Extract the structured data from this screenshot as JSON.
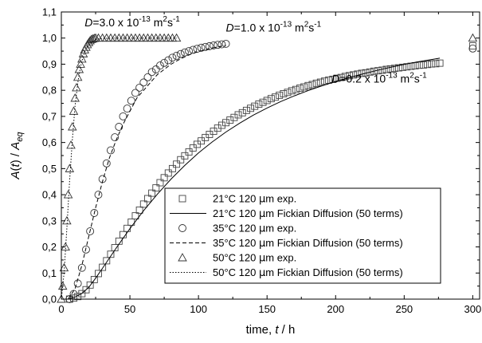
{
  "chart_data": {
    "type": "scatter",
    "title": "",
    "xlabel": {
      "prefix": "time, ",
      "var": "t",
      "suffix": " / h"
    },
    "ylabel": {
      "A": "A",
      "t": "t",
      "eq": "eq"
    },
    "xlim": [
      0,
      305
    ],
    "ylim": [
      0,
      1.1
    ],
    "x_ticks": [
      0,
      50,
      100,
      150,
      200,
      250,
      300
    ],
    "x_tick_labels": [
      "0",
      "50",
      "100",
      "150",
      "200",
      "250",
      "300"
    ],
    "y_ticks": [
      0,
      0.1,
      0.2,
      0.3,
      0.4,
      0.5,
      0.6,
      0.7,
      0.8,
      0.9,
      1.0,
      1.1
    ],
    "y_tick_labels": [
      "0,0",
      "0,1",
      "0,2",
      "0,3",
      "0,4",
      "0,5",
      "0,6",
      "0,7",
      "0,8",
      "0,9",
      "1,0",
      "1,1"
    ],
    "grid": false,
    "legend_position": "bottom-right",
    "annotations": [
      {
        "var": "D",
        "text": "=3.0 x 10",
        "exp": "-13",
        "unit": " m",
        "unit_exp": "2",
        "unit2": "s",
        "unit2_exp": "-1",
        "at_x": 17,
        "at_y": 1.045
      },
      {
        "var": "D",
        "text": "=1.0 x 10",
        "exp": "-13",
        "unit": " m",
        "unit_exp": "2",
        "unit2": "s",
        "unit2_exp": "-1",
        "at_x": 120,
        "at_y": 1.025
      },
      {
        "var": "D",
        "text": "=0.2 x 10",
        "exp": "-13",
        "unit": " m",
        "unit_exp": "2",
        "unit2": "s",
        "unit2_exp": "-1",
        "at_x": 197,
        "at_y": 0.83
      }
    ],
    "series": [
      {
        "name": "21°C 120 μm exp.",
        "label_parts": [
          "21°C 120 ",
          "μ",
          "m exp."
        ],
        "kind": "points",
        "marker": "square",
        "x": [
          6,
          9,
          12,
          15,
          18,
          21,
          24,
          27,
          30,
          33,
          36,
          39,
          42,
          45,
          48,
          51,
          54,
          57,
          60,
          63,
          66,
          69,
          72,
          75,
          78,
          81,
          84,
          87,
          90,
          93,
          96,
          99,
          102,
          105,
          108,
          111,
          114,
          117,
          120,
          123,
          126,
          129,
          132,
          135,
          138,
          141,
          144,
          147,
          150,
          153,
          156,
          159,
          162,
          165,
          168,
          171,
          174,
          177,
          180,
          183,
          186,
          189,
          192,
          195,
          198,
          201,
          204,
          207,
          210,
          213,
          216,
          219,
          222,
          225,
          228,
          231,
          234,
          237,
          240,
          243,
          246,
          249,
          252,
          255,
          258,
          261,
          264,
          267,
          270,
          273,
          276,
          300
        ],
        "y": [
          0.0,
          0.004,
          0.01,
          0.021,
          0.036,
          0.054,
          0.075,
          0.098,
          0.122,
          0.147,
          0.172,
          0.197,
          0.222,
          0.247,
          0.271,
          0.295,
          0.319,
          0.341,
          0.364,
          0.385,
          0.406,
          0.426,
          0.446,
          0.465,
          0.483,
          0.5,
          0.517,
          0.534,
          0.549,
          0.564,
          0.579,
          0.593,
          0.606,
          0.619,
          0.631,
          0.643,
          0.655,
          0.666,
          0.676,
          0.686,
          0.696,
          0.706,
          0.714,
          0.723,
          0.731,
          0.739,
          0.747,
          0.754,
          0.761,
          0.768,
          0.774,
          0.781,
          0.787,
          0.792,
          0.798,
          0.803,
          0.808,
          0.813,
          0.818,
          0.822,
          0.827,
          0.831,
          0.835,
          0.839,
          0.842,
          0.846,
          0.849,
          0.853,
          0.856,
          0.859,
          0.862,
          0.865,
          0.867,
          0.87,
          0.873,
          0.875,
          0.877,
          0.88,
          0.882,
          0.884,
          0.886,
          0.888,
          0.89,
          0.892,
          0.894,
          0.896,
          0.897,
          0.899,
          0.901,
          0.902,
          0.904,
          0.97
        ]
      },
      {
        "name": "21°C 120 μm Fickian Diffusion (50 terms)",
        "label_parts": [
          "21°C 120 ",
          "μ",
          "m Fickian Diffusion (50 terms)"
        ],
        "kind": "line",
        "dash": "",
        "x": [
          5,
          10,
          15,
          20,
          25,
          30,
          40,
          50,
          60,
          70,
          80,
          90,
          100,
          110,
          120,
          130,
          140,
          150,
          160,
          170,
          180,
          190,
          200,
          210,
          220,
          230,
          240,
          250,
          260,
          270,
          276
        ],
        "y": [
          0.0,
          0.008,
          0.022,
          0.045,
          0.08,
          0.118,
          0.196,
          0.27,
          0.339,
          0.402,
          0.46,
          0.512,
          0.56,
          0.602,
          0.64,
          0.674,
          0.705,
          0.732,
          0.757,
          0.779,
          0.799,
          0.817,
          0.834,
          0.849,
          0.863,
          0.876,
          0.888,
          0.899,
          0.909,
          0.918,
          0.923
        ]
      },
      {
        "name": "35°C 120 μm exp.",
        "label_parts": [
          "35°C 120 ",
          "μ",
          "m exp."
        ],
        "kind": "points",
        "marker": "circle",
        "x": [
          6,
          9,
          12,
          15,
          18,
          21,
          24,
          27,
          30,
          33,
          36,
          39,
          42,
          45,
          48,
          51,
          54,
          57,
          60,
          63,
          66,
          69,
          72,
          75,
          78,
          81,
          84,
          87,
          90,
          93,
          96,
          99,
          102,
          105,
          108,
          111,
          114,
          117,
          120,
          300
        ],
        "y": [
          0.0,
          0.02,
          0.06,
          0.12,
          0.19,
          0.26,
          0.33,
          0.4,
          0.46,
          0.52,
          0.57,
          0.62,
          0.66,
          0.7,
          0.73,
          0.76,
          0.79,
          0.81,
          0.83,
          0.85,
          0.87,
          0.88,
          0.895,
          0.905,
          0.915,
          0.925,
          0.932,
          0.939,
          0.945,
          0.95,
          0.955,
          0.959,
          0.963,
          0.966,
          0.969,
          0.972,
          0.974,
          0.976,
          0.978,
          0.96
        ]
      },
      {
        "name": "35°C 120 μm Fickian Diffusion (50 terms)",
        "label_parts": [
          "35°C 120 ",
          "μ",
          "m Fickian Diffusion (50 terms)"
        ],
        "kind": "line",
        "dash": "5,3",
        "x": [
          5,
          10,
          15,
          20,
          25,
          30,
          35,
          40,
          45,
          50,
          55,
          60,
          65,
          70,
          75,
          80,
          85,
          90,
          95,
          100,
          110,
          120
        ],
        "y": [
          0.0,
          0.04,
          0.13,
          0.24,
          0.35,
          0.45,
          0.54,
          0.61,
          0.67,
          0.72,
          0.77,
          0.8,
          0.83,
          0.86,
          0.88,
          0.9,
          0.915,
          0.928,
          0.94,
          0.948,
          0.962,
          0.972
        ]
      },
      {
        "name": "50°C 120 μm exp.",
        "label_parts": [
          "50°C 120 ",
          "μ",
          "m exp."
        ],
        "kind": "points",
        "marker": "triangle",
        "x": [
          0,
          1,
          2,
          3,
          4,
          5,
          6,
          7,
          8,
          9,
          10,
          11,
          12,
          13,
          14,
          15,
          16,
          17,
          18,
          19,
          20,
          21,
          22,
          23,
          24,
          25,
          27,
          30,
          33,
          36,
          39,
          42,
          45,
          48,
          51,
          54,
          57,
          60,
          63,
          66,
          69,
          72,
          75,
          78,
          81,
          84,
          300
        ],
        "y": [
          0.0,
          0.05,
          0.12,
          0.2,
          0.3,
          0.4,
          0.5,
          0.59,
          0.66,
          0.72,
          0.77,
          0.81,
          0.85,
          0.88,
          0.9,
          0.92,
          0.94,
          0.955,
          0.965,
          0.975,
          0.983,
          0.99,
          0.995,
          0.997,
          0.999,
          1.0,
          1.0,
          1.0,
          1.0,
          1.0,
          1.0,
          1.0,
          1.0,
          1.0,
          1.0,
          1.0,
          1.0,
          1.0,
          1.0,
          1.0,
          1.0,
          1.0,
          1.0,
          1.0,
          1.0,
          1.0,
          1.0
        ]
      },
      {
        "name": "50°C 120 μm Fickian Diffusion (50 terms)",
        "label_parts": [
          "50°C 120 ",
          "μ",
          "m Fickian Diffusion (50 terms)"
        ],
        "kind": "line",
        "dash": "1.5,2",
        "x": [
          0,
          2,
          4,
          6,
          8,
          10,
          12,
          14,
          16,
          18,
          20,
          22,
          24,
          26,
          30,
          40,
          60,
          84
        ],
        "y": [
          0.0,
          0.1,
          0.27,
          0.45,
          0.61,
          0.74,
          0.83,
          0.89,
          0.93,
          0.96,
          0.975,
          0.985,
          0.992,
          0.996,
          0.999,
          1.0,
          1.0,
          1.0
        ]
      }
    ]
  }
}
